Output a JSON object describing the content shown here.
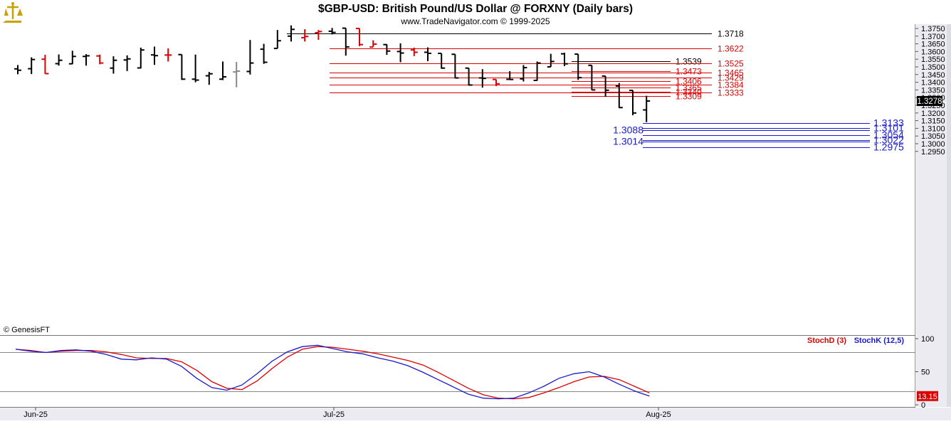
{
  "header": {
    "title": "$GBP-USD:  British Pound/US Dollar @ FORXNY  (Daily bars)",
    "subtitle": "www.TradeNavigator.com © 1999-2025",
    "logo": "trade-navigator-logo-icon"
  },
  "watermark": "© GenesisFT",
  "colors": {
    "background": "#ffffff",
    "bar_default": "#000000",
    "bar_down": "#dd0000",
    "bar_neutral": "#888888",
    "level_black": "#000000",
    "level_red": "#dd0000",
    "level_blue": "#1a1acc",
    "stoch_d": "#dd0000",
    "stoch_k": "#1a1acc",
    "axis_bg": "#ecebf2"
  },
  "price_axis": {
    "ticks": [
      "1.3750",
      "1.3700",
      "1.3650",
      "1.3600",
      "1.3550",
      "1.3500",
      "1.3450",
      "1.3400",
      "1.3350",
      "1.3300",
      "1.3250",
      "1.3200",
      "1.3150",
      "1.3100",
      "1.3050",
      "1.3000",
      "1.2950"
    ],
    "current_label": "1.3278"
  },
  "date_axis": {
    "labels": [
      "Jun-25",
      "Jul-25",
      "Aug-25"
    ]
  },
  "stoch": {
    "d_label": "StochD (3)",
    "k_label": "StochK (12,5)",
    "ticks": [
      "100",
      "50",
      "0"
    ],
    "current_label": "13.15"
  },
  "chart_data": [
    {
      "type": "ohlc",
      "title": "$GBP-USD:  British Pound/US Dollar @ FORXNY  (Daily bars)",
      "ylim": [
        1.2935,
        1.376
      ],
      "bars": [
        {
          "x": "Jun-25 1",
          "o": 1.3487,
          "h": 1.3512,
          "l": 1.3452,
          "c": 1.3478,
          "color": "black"
        },
        {
          "x": "Jun-25 2",
          "o": 1.3488,
          "h": 1.3562,
          "l": 1.3453,
          "c": 1.3548,
          "color": "black"
        },
        {
          "x": "Jun-25 3",
          "o": 1.355,
          "h": 1.3579,
          "l": 1.3455,
          "c": 1.3456,
          "color": "red"
        },
        {
          "x": "Jun-25 4",
          "o": 1.3521,
          "h": 1.3581,
          "l": 1.3508,
          "c": 1.3543,
          "color": "black"
        },
        {
          "x": "Jun-25 5",
          "o": 1.352,
          "h": 1.3605,
          "l": 1.3518,
          "c": 1.3568,
          "color": "black"
        },
        {
          "x": "Jun-25 6",
          "o": 1.3568,
          "h": 1.3583,
          "l": 1.3508,
          "c": 1.3572,
          "color": "black"
        },
        {
          "x": "Jun-25 7",
          "o": 1.3571,
          "h": 1.358,
          "l": 1.3517,
          "c": 1.3525,
          "color": "red"
        },
        {
          "x": "Jun-25 8",
          "o": 1.3492,
          "h": 1.3569,
          "l": 1.3456,
          "c": 1.3543,
          "color": "black"
        },
        {
          "x": "Jun-25 9",
          "o": 1.3545,
          "h": 1.3575,
          "l": 1.3473,
          "c": 1.3552,
          "color": "black"
        },
        {
          "x": "Jun-25 10",
          "o": 1.3493,
          "h": 1.3625,
          "l": 1.349,
          "c": 1.361,
          "color": "black"
        },
        {
          "x": "Jun-25 11",
          "o": 1.3578,
          "h": 1.3632,
          "l": 1.3513,
          "c": 1.3573,
          "color": "black"
        },
        {
          "x": "Jun-25 12",
          "o": 1.3577,
          "h": 1.362,
          "l": 1.3535,
          "c": 1.3577,
          "color": "red"
        },
        {
          "x": "Jun-25 13",
          "o": 1.358,
          "h": 1.358,
          "l": 1.3415,
          "c": 1.342,
          "color": "black"
        },
        {
          "x": "Jun-25 14",
          "o": 1.342,
          "h": 1.358,
          "l": 1.34,
          "c": 1.3414,
          "color": "black"
        },
        {
          "x": "Jun-25 15",
          "o": 1.3442,
          "h": 1.3467,
          "l": 1.3383,
          "c": 1.3455,
          "color": "black"
        },
        {
          "x": "Jun-25 16",
          "o": 1.342,
          "h": 1.3535,
          "l": 1.3414,
          "c": 1.3435,
          "color": "black"
        },
        {
          "x": "Jun-25 17",
          "o": 1.3467,
          "h": 1.3532,
          "l": 1.3367,
          "c": 1.3472,
          "color": "gray"
        },
        {
          "x": "Jun-25 18",
          "o": 1.347,
          "h": 1.3675,
          "l": 1.345,
          "c": 1.3525,
          "color": "black"
        },
        {
          "x": "Jun-25 19",
          "o": 1.3615,
          "h": 1.365,
          "l": 1.352,
          "c": 1.353,
          "color": "black"
        },
        {
          "x": "Jun-25 20",
          "o": 1.362,
          "h": 1.374,
          "l": 1.362,
          "c": 1.367,
          "color": "black"
        },
        {
          "x": "Jul-25 1",
          "o": 1.37,
          "h": 1.377,
          "l": 1.3665,
          "c": 1.3744,
          "color": "black"
        },
        {
          "x": "Jul-25 2",
          "o": 1.369,
          "h": 1.3745,
          "l": 1.3665,
          "c": 1.3698,
          "color": "red"
        },
        {
          "x": "Jul-25 3",
          "o": 1.3722,
          "h": 1.374,
          "l": 1.3676,
          "c": 1.373,
          "color": "red"
        },
        {
          "x": "Jul-25 4",
          "o": 1.3732,
          "h": 1.3753,
          "l": 1.3711,
          "c": 1.3724,
          "color": "black"
        },
        {
          "x": "Jul-25 5",
          "o": 1.3752,
          "h": 1.3752,
          "l": 1.3573,
          "c": 1.363,
          "color": "black"
        },
        {
          "x": "Jul-25 6",
          "o": 1.375,
          "h": 1.375,
          "l": 1.3635,
          "c": 1.3645,
          "color": "red"
        },
        {
          "x": "Jul-25 7",
          "o": 1.3629,
          "h": 1.3673,
          "l": 1.363,
          "c": 1.3648,
          "color": "red"
        },
        {
          "x": "Jul-25 8",
          "o": 1.3645,
          "h": 1.3647,
          "l": 1.3578,
          "c": 1.3603,
          "color": "black"
        },
        {
          "x": "Jul-25 9",
          "o": 1.36,
          "h": 1.3653,
          "l": 1.353,
          "c": 1.359,
          "color": "black"
        },
        {
          "x": "Jul-25 10",
          "o": 1.361,
          "h": 1.3625,
          "l": 1.357,
          "c": 1.3595,
          "color": "red"
        },
        {
          "x": "Jul-25 11",
          "o": 1.3595,
          "h": 1.3627,
          "l": 1.3537,
          "c": 1.3588,
          "color": "black"
        },
        {
          "x": "Jul-25 12",
          "o": 1.3588,
          "h": 1.3588,
          "l": 1.3488,
          "c": 1.3492,
          "color": "black"
        },
        {
          "x": "Jul-25 13",
          "o": 1.3582,
          "h": 1.3582,
          "l": 1.3425,
          "c": 1.3428,
          "color": "black"
        },
        {
          "x": "Jul-25 14",
          "o": 1.3492,
          "h": 1.3492,
          "l": 1.3378,
          "c": 1.3382,
          "color": "black"
        },
        {
          "x": "Jul-25 15",
          "o": 1.3428,
          "h": 1.3485,
          "l": 1.3365,
          "c": 1.3425,
          "color": "black"
        },
        {
          "x": "Jul-25 16",
          "o": 1.3418,
          "h": 1.3418,
          "l": 1.3375,
          "c": 1.339,
          "color": "red"
        },
        {
          "x": "Jul-25 17",
          "o": 1.3419,
          "h": 1.3472,
          "l": 1.3418,
          "c": 1.3418,
          "color": "black"
        },
        {
          "x": "Jul-25 18",
          "o": 1.3422,
          "h": 1.3512,
          "l": 1.3405,
          "c": 1.3495,
          "color": "black"
        },
        {
          "x": "Jul-25 19",
          "o": 1.3412,
          "h": 1.3535,
          "l": 1.341,
          "c": 1.3525,
          "color": "black"
        },
        {
          "x": "Jul-25 20",
          "o": 1.35,
          "h": 1.3585,
          "l": 1.35,
          "c": 1.3535,
          "color": "black"
        },
        {
          "x": "Jul-25 21",
          "o": 1.3585,
          "h": 1.3592,
          "l": 1.3505,
          "c": 1.352,
          "color": "black"
        },
        {
          "x": "Jul-25 22",
          "o": 1.3583,
          "h": 1.3583,
          "l": 1.3415,
          "c": 1.343,
          "color": "black"
        },
        {
          "x": "Jul-25 23",
          "o": 1.351,
          "h": 1.351,
          "l": 1.3348,
          "c": 1.335,
          "color": "black"
        },
        {
          "x": "Aug-25 1",
          "o": 1.344,
          "h": 1.344,
          "l": 1.3305,
          "c": 1.3348,
          "color": "black"
        },
        {
          "x": "Aug-25 2",
          "o": 1.3375,
          "h": 1.3395,
          "l": 1.3232,
          "c": 1.3235,
          "color": "black"
        },
        {
          "x": "Aug-25 3",
          "o": 1.3347,
          "h": 1.3347,
          "l": 1.3185,
          "c": 1.32,
          "color": "black"
        },
        {
          "x": "Aug-25 4",
          "o": 1.322,
          "h": 1.3312,
          "l": 1.314,
          "c": 1.3278,
          "color": "black"
        }
      ],
      "levels": [
        {
          "value": 1.3718,
          "label": "1.3718",
          "color": "black"
        },
        {
          "value": 1.3622,
          "label": "1.3622",
          "color": "red"
        },
        {
          "value": 1.3539,
          "label": "1.3539",
          "color": "black"
        },
        {
          "value": 1.3525,
          "label": "1.3525",
          "color": "red"
        },
        {
          "value": 1.3473,
          "label": "1.3473",
          "color": "red"
        },
        {
          "value": 1.3465,
          "label": "1.3465",
          "color": "red"
        },
        {
          "value": 1.3429,
          "label": "1.3429",
          "color": "red"
        },
        {
          "value": 1.3406,
          "label": "1.3406",
          "color": "red"
        },
        {
          "value": 1.3384,
          "label": "1.3384",
          "color": "red"
        },
        {
          "value": 1.3365,
          "label": "1.3365",
          "color": "red"
        },
        {
          "value": 1.334,
          "label": "1.3340",
          "color": "red"
        },
        {
          "value": 1.3333,
          "label": "1.3333",
          "color": "red"
        },
        {
          "value": 1.3309,
          "label": "1.3309",
          "color": "red"
        },
        {
          "value": 1.3133,
          "label": "1.3133",
          "color": "blue"
        },
        {
          "value": 1.3101,
          "label": "1.3101",
          "color": "blue"
        },
        {
          "value": 1.3088,
          "label": "1.3088",
          "color": "blue"
        },
        {
          "value": 1.3054,
          "label": "1.3054",
          "color": "blue"
        },
        {
          "value": 1.3022,
          "label": "1.3022",
          "color": "blue"
        },
        {
          "value": 1.3014,
          "label": "1.3014",
          "color": "blue"
        },
        {
          "value": 1.2975,
          "label": "1.2975",
          "color": "blue"
        }
      ]
    },
    {
      "type": "line",
      "ylim": [
        0,
        100
      ],
      "guide_lines": [
        80,
        20
      ],
      "series": [
        {
          "name": "StochD (3)",
          "color": "red",
          "values": [
            84,
            82,
            79,
            81,
            82,
            82,
            80,
            76,
            71,
            70,
            70,
            65,
            52,
            35,
            25,
            23,
            36,
            55,
            72,
            84,
            88,
            87,
            84,
            81,
            77,
            72,
            67,
            60,
            49,
            37,
            25,
            15,
            10,
            9,
            11,
            18,
            26,
            35,
            42,
            43,
            38,
            28,
            18
          ]
        },
        {
          "name": "StochK (12,5)",
          "color": "blue",
          "values": [
            84,
            81,
            79,
            82,
            83,
            81,
            76,
            69,
            68,
            71,
            69,
            58,
            40,
            26,
            22,
            30,
            47,
            66,
            80,
            88,
            90,
            85,
            80,
            77,
            71,
            66,
            59,
            49,
            38,
            27,
            16,
            10,
            9,
            10,
            18,
            28,
            40,
            47,
            50,
            42,
            31,
            21,
            13.15
          ]
        }
      ]
    }
  ]
}
